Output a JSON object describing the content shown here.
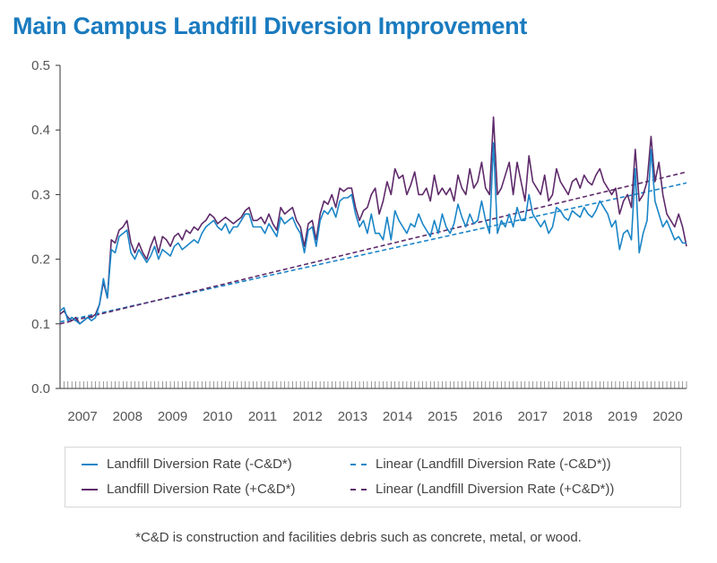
{
  "chart_data": {
    "type": "line",
    "title": "Main Campus Landfill Diversion Improvement",
    "xlabel": "",
    "ylabel": "",
    "ylim": [
      0,
      0.5
    ],
    "yticks": [
      "0.0",
      "0.1",
      "0.2",
      "0.3",
      "0.4",
      "0.5"
    ],
    "year_labels": [
      "2007",
      "2008",
      "2009",
      "2010",
      "2011",
      "2012",
      "2013",
      "2014",
      "2015",
      "2016",
      "2017",
      "2018",
      "2019",
      "2020"
    ],
    "x_start": 2007.0,
    "x_end": 2020.92,
    "series": [
      {
        "name": "Landfill Diversion Rate (-C&D*)",
        "style": "solid",
        "color": "#1a85c7",
        "values": [
          0.12,
          0.125,
          0.105,
          0.11,
          0.105,
          0.1,
          0.105,
          0.11,
          0.105,
          0.11,
          0.13,
          0.17,
          0.14,
          0.215,
          0.21,
          0.235,
          0.24,
          0.245,
          0.21,
          0.2,
          0.215,
          0.205,
          0.195,
          0.205,
          0.22,
          0.2,
          0.215,
          0.21,
          0.205,
          0.22,
          0.225,
          0.215,
          0.22,
          0.225,
          0.23,
          0.225,
          0.24,
          0.25,
          0.255,
          0.26,
          0.25,
          0.245,
          0.255,
          0.24,
          0.25,
          0.25,
          0.26,
          0.27,
          0.27,
          0.25,
          0.25,
          0.25,
          0.24,
          0.255,
          0.245,
          0.235,
          0.265,
          0.255,
          0.26,
          0.265,
          0.25,
          0.24,
          0.21,
          0.245,
          0.25,
          0.22,
          0.26,
          0.275,
          0.27,
          0.28,
          0.265,
          0.29,
          0.295,
          0.295,
          0.3,
          0.27,
          0.25,
          0.26,
          0.24,
          0.27,
          0.24,
          0.24,
          0.23,
          0.265,
          0.23,
          0.275,
          0.26,
          0.25,
          0.24,
          0.255,
          0.25,
          0.27,
          0.255,
          0.245,
          0.235,
          0.26,
          0.24,
          0.27,
          0.25,
          0.24,
          0.255,
          0.285,
          0.265,
          0.25,
          0.27,
          0.255,
          0.26,
          0.29,
          0.26,
          0.24,
          0.38,
          0.24,
          0.26,
          0.25,
          0.27,
          0.25,
          0.28,
          0.26,
          0.26,
          0.3,
          0.27,
          0.26,
          0.25,
          0.26,
          0.24,
          0.25,
          0.28,
          0.275,
          0.265,
          0.26,
          0.275,
          0.27,
          0.265,
          0.28,
          0.27,
          0.265,
          0.275,
          0.29,
          0.28,
          0.27,
          0.25,
          0.26,
          0.215,
          0.24,
          0.245,
          0.23,
          0.34,
          0.21,
          0.24,
          0.26,
          0.37,
          0.29,
          0.27,
          0.25,
          0.26,
          0.245,
          0.23,
          0.235,
          0.225,
          0.225
        ]
      },
      {
        "name": "Landfill Diversion Rate (+C&D*)",
        "style": "solid",
        "color": "#5e2a6a",
        "values": [
          0.115,
          0.12,
          0.11,
          0.105,
          0.11,
          0.1,
          0.105,
          0.11,
          0.11,
          0.115,
          0.13,
          0.165,
          0.14,
          0.23,
          0.225,
          0.245,
          0.25,
          0.26,
          0.225,
          0.21,
          0.225,
          0.21,
          0.2,
          0.22,
          0.235,
          0.21,
          0.235,
          0.23,
          0.22,
          0.235,
          0.24,
          0.23,
          0.245,
          0.24,
          0.25,
          0.245,
          0.255,
          0.26,
          0.27,
          0.265,
          0.255,
          0.26,
          0.265,
          0.26,
          0.255,
          0.26,
          0.265,
          0.275,
          0.28,
          0.26,
          0.26,
          0.265,
          0.255,
          0.27,
          0.255,
          0.245,
          0.28,
          0.27,
          0.275,
          0.28,
          0.26,
          0.25,
          0.22,
          0.255,
          0.26,
          0.23,
          0.27,
          0.29,
          0.285,
          0.3,
          0.28,
          0.31,
          0.305,
          0.31,
          0.31,
          0.28,
          0.26,
          0.275,
          0.28,
          0.3,
          0.31,
          0.27,
          0.29,
          0.32,
          0.3,
          0.34,
          0.325,
          0.33,
          0.3,
          0.315,
          0.335,
          0.3,
          0.3,
          0.31,
          0.29,
          0.33,
          0.3,
          0.31,
          0.3,
          0.31,
          0.29,
          0.33,
          0.31,
          0.3,
          0.34,
          0.31,
          0.32,
          0.35,
          0.31,
          0.3,
          0.42,
          0.3,
          0.31,
          0.33,
          0.35,
          0.3,
          0.35,
          0.32,
          0.29,
          0.36,
          0.32,
          0.31,
          0.3,
          0.33,
          0.29,
          0.3,
          0.34,
          0.32,
          0.31,
          0.3,
          0.32,
          0.325,
          0.31,
          0.33,
          0.32,
          0.315,
          0.33,
          0.34,
          0.32,
          0.31,
          0.3,
          0.31,
          0.27,
          0.29,
          0.3,
          0.28,
          0.37,
          0.29,
          0.3,
          0.32,
          0.39,
          0.32,
          0.35,
          0.3,
          0.27,
          0.26,
          0.25,
          0.27,
          0.25,
          0.22
        ]
      },
      {
        "name": "Linear (Landfill Diversion Rate (-C&D*))",
        "style": "dashed",
        "color": "#1a85c7",
        "values": [
          0.103,
          0.318
        ]
      },
      {
        "name": "Linear (Landfill Diversion Rate (+C&D*))",
        "style": "dashed",
        "color": "#5e2a6a",
        "values": [
          0.1,
          0.335
        ]
      }
    ],
    "legend_position": "bottom",
    "footnote": "*C&D is construction and facilities debris such as concrete, metal, or wood."
  }
}
